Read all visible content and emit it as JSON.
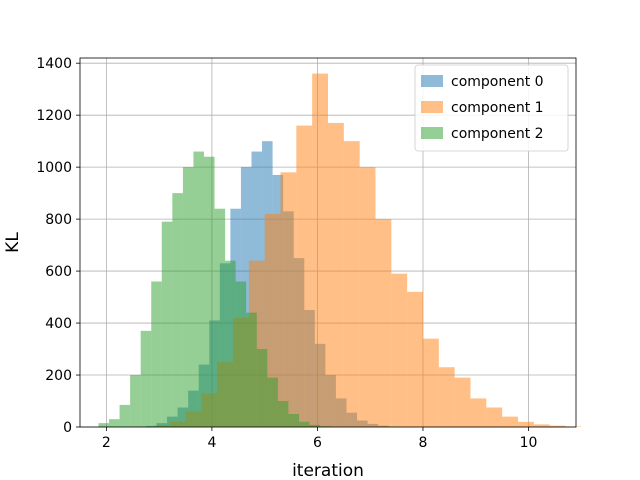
{
  "chart_data": {
    "type": "bar",
    "subtype": "overlaid-histogram",
    "title": "",
    "xlabel": "iteration",
    "ylabel": "KL",
    "xlim": [
      1.5,
      10.9
    ],
    "ylim": [
      0,
      1420
    ],
    "xticks": [
      2,
      4,
      6,
      8,
      10
    ],
    "yticks": [
      0,
      200,
      400,
      600,
      800,
      1000,
      1200,
      1400
    ],
    "grid": true,
    "legend": "top-right",
    "bar_alpha": 0.5,
    "series": [
      {
        "name": "component 0",
        "color": "#1f77b4",
        "bin_start": 2.55,
        "bin_width": 0.2,
        "values": [
          1,
          4,
          15,
          40,
          75,
          140,
          240,
          410,
          630,
          840,
          1000,
          1060,
          1100,
          970,
          830,
          650,
          450,
          320,
          200,
          110,
          55,
          25,
          12,
          5,
          2
        ]
      },
      {
        "name": "component 1",
        "color": "#ff7f0e",
        "bin_start": 2.6,
        "bin_width": 0.3,
        "values": [
          2,
          6,
          20,
          60,
          130,
          250,
          420,
          640,
          820,
          980,
          1160,
          1360,
          1170,
          1100,
          1000,
          800,
          590,
          520,
          340,
          230,
          190,
          110,
          75,
          40,
          20,
          10,
          5,
          2
        ]
      },
      {
        "name": "component 2",
        "color": "#2ca02c",
        "bin_start": 1.85,
        "bin_width": 0.2,
        "values": [
          15,
          30,
          85,
          200,
          370,
          560,
          790,
          900,
          1000,
          1060,
          1040,
          840,
          640,
          560,
          440,
          300,
          190,
          100,
          50,
          20,
          8,
          3
        ]
      }
    ]
  }
}
